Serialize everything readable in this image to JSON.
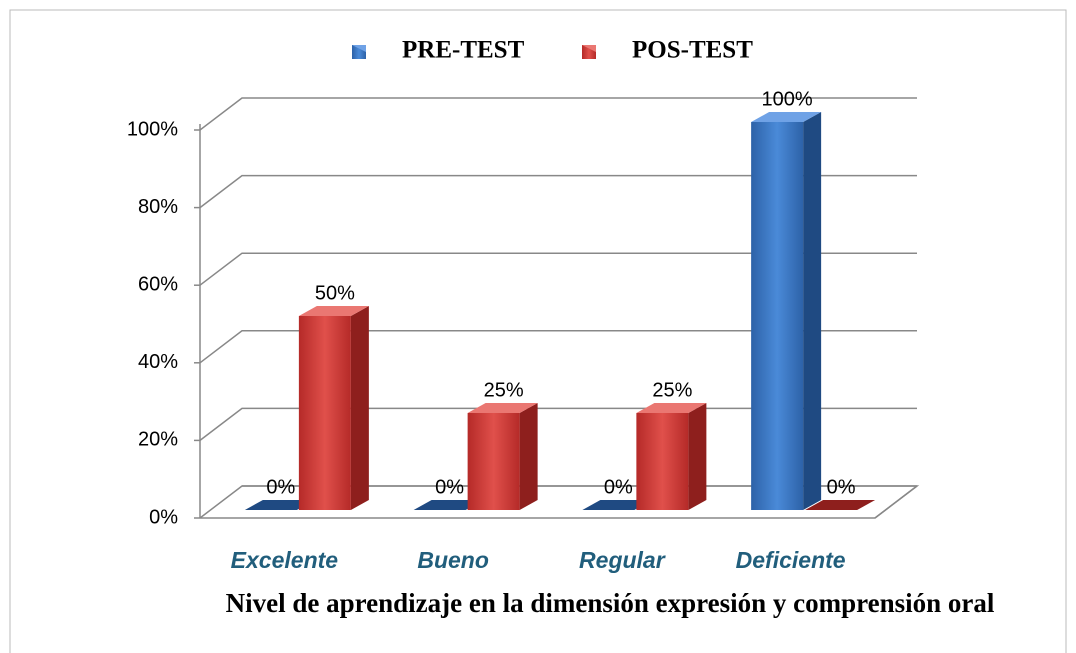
{
  "chart_data": {
    "type": "bar3d",
    "x_label": "Nivel de aprendizaje en la dimensión expresión y comprensión oral",
    "categories": [
      "Excelente",
      "Bueno",
      "Regular",
      "Deficiente"
    ],
    "series": [
      {
        "name": "PRE-TEST",
        "color": "#3a78c9",
        "values": [
          0,
          0,
          0,
          100
        ],
        "value_labels": [
          "0%",
          "0%",
          "0%",
          "100%"
        ]
      },
      {
        "name": "POS-TEST",
        "color": "#d03a36",
        "values": [
          50,
          25,
          25,
          0
        ],
        "value_labels": [
          "50%",
          "25%",
          "25%",
          "0%"
        ]
      }
    ],
    "ylim": [
      0,
      100
    ],
    "yticks": [
      {
        "value": 0,
        "label": "0%"
      },
      {
        "value": 20,
        "label": "20%"
      },
      {
        "value": 40,
        "label": "40%"
      },
      {
        "value": 60,
        "label": "60%"
      },
      {
        "value": 80,
        "label": "80%"
      },
      {
        "value": 100,
        "label": "100%"
      }
    ],
    "grid": true,
    "legend": "top"
  }
}
